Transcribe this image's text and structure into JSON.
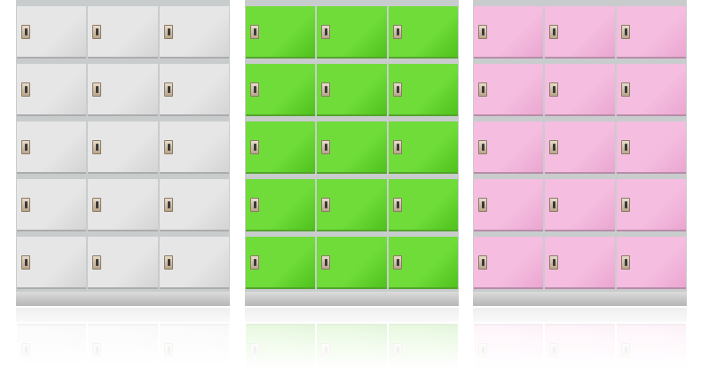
{
  "lockers": [
    {
      "name": "gray",
      "door_color": "#e6e6e6",
      "door_shade": "#d4d4d4",
      "rows": 5,
      "columns": 3
    },
    {
      "name": "green",
      "door_color": "#6fdc3a",
      "door_shade": "#4fc21c",
      "rows": 5,
      "columns": 3
    },
    {
      "name": "pink",
      "door_color": "#f5bde0",
      "door_shade": "#eaa6d0",
      "rows": 5,
      "columns": 3
    }
  ]
}
